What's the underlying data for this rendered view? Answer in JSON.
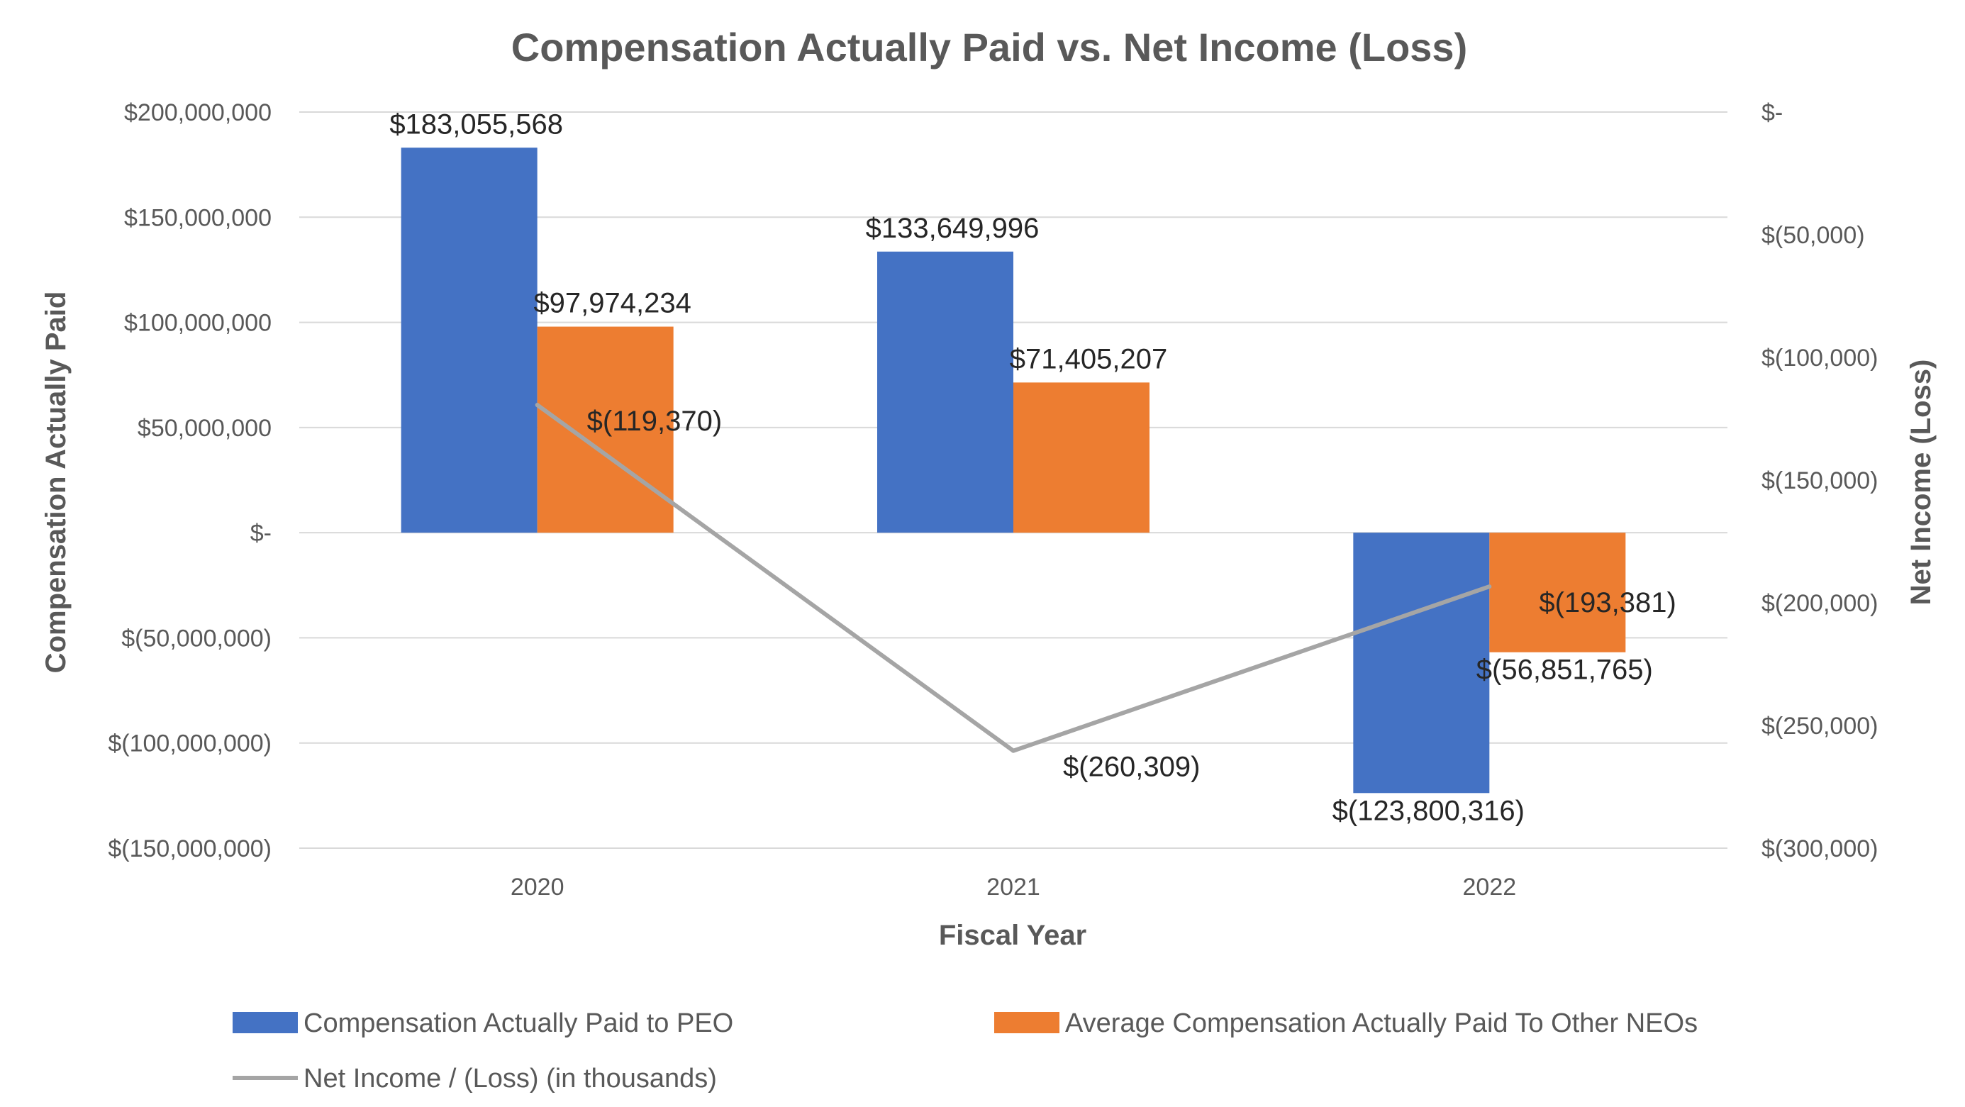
{
  "chart_data": {
    "type": "bar",
    "title": "Compensation Actually Paid vs. Net Income (Loss)",
    "xlabel": "Fiscal Year",
    "ylabel": "Compensation Actually Paid",
    "y2label": "Net Income (Loss)",
    "categories": [
      "2020",
      "2021",
      "2022"
    ],
    "ylim": [
      -150000000,
      200000000
    ],
    "y2lim": [
      -300000,
      0
    ],
    "y_ticks": [
      {
        "value": 200000000,
        "label": "$200,000,000"
      },
      {
        "value": 150000000,
        "label": "$150,000,000"
      },
      {
        "value": 100000000,
        "label": "$100,000,000"
      },
      {
        "value": 50000000,
        "label": "$50,000,000"
      },
      {
        "value": 0,
        "label": "$-"
      },
      {
        "value": -50000000,
        "label": "$(50,000,000)"
      },
      {
        "value": -100000000,
        "label": "$(100,000,000)"
      },
      {
        "value": -150000000,
        "label": "$(150,000,000)"
      }
    ],
    "y2_ticks": [
      {
        "value": 0,
        "label": "$-"
      },
      {
        "value": -50000,
        "label": "$(50,000)"
      },
      {
        "value": -100000,
        "label": "$(100,000)"
      },
      {
        "value": -150000,
        "label": "$(150,000)"
      },
      {
        "value": -200000,
        "label": "$(200,000)"
      },
      {
        "value": -250000,
        "label": "$(250,000)"
      },
      {
        "value": -300000,
        "label": "$(300,000)"
      }
    ],
    "series": [
      {
        "name": "Compensation Actually Paid to PEO",
        "kind": "bar",
        "axis": "left",
        "color": "#4472C4",
        "values": [
          183055568,
          133649996,
          -123800316
        ],
        "labels": [
          "$183,055,568",
          "$133,649,996",
          "$(123,800,316)"
        ]
      },
      {
        "name": "Average Compensation Actually Paid To Other NEOs",
        "kind": "bar",
        "axis": "left",
        "color": "#ED7D31",
        "values": [
          97974234,
          71405207,
          -56851765
        ],
        "labels": [
          "$97,974,234",
          "$71,405,207",
          "$(56,851,765)"
        ]
      },
      {
        "name": "Net Income / (Loss) (in thousands)",
        "kind": "line",
        "axis": "right",
        "color": "#A5A5A5",
        "values": [
          -119370,
          -260309,
          -193381
        ],
        "labels": [
          "$(119,370)",
          "$(260,309)",
          "$(193,381)"
        ]
      }
    ]
  }
}
